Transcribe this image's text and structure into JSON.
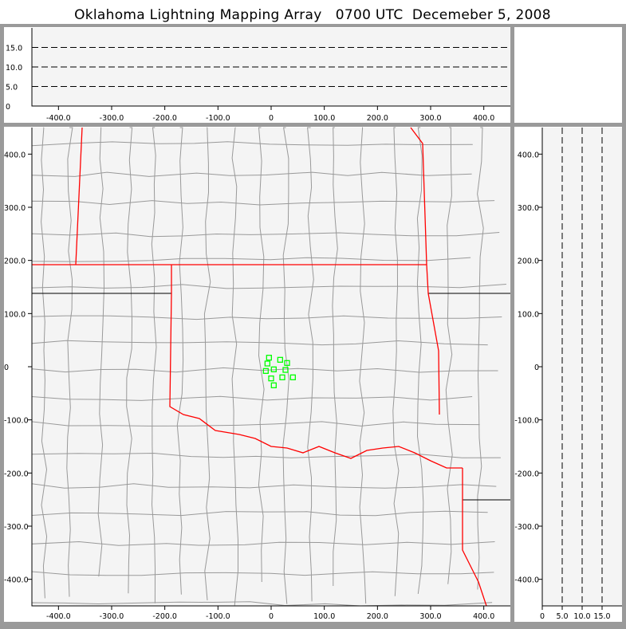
{
  "title": "Oklahoma Lightning Mapping Array   0700 UTC  Decemeber 5, 2008",
  "colors": {
    "frame": "#9a9a9a",
    "plot_bg": "#f4f4f4",
    "state_border": "#ff0000",
    "county_border": "#999999",
    "sources": "#00ff00"
  },
  "chart_data": [
    {
      "type": "scatter",
      "panel": "plan view",
      "xlim": [
        -450,
        450
      ],
      "ylim": [
        -450,
        450
      ],
      "xticks": [
        "-400.0",
        "-300.0",
        "-200.0",
        "-100.0",
        "0",
        "100.0",
        "200.0",
        "300.0",
        "400.0"
      ],
      "yticks": [
        "400.0",
        "300.0",
        "200.0",
        "100.0",
        "0",
        "-100.0",
        "-200.0",
        "-300.0",
        "-400.0"
      ],
      "marker": "open-square",
      "points": [
        [
          -4,
          17
        ],
        [
          17,
          13
        ],
        [
          30,
          7
        ],
        [
          -7,
          6
        ],
        [
          5,
          -5
        ],
        [
          -10,
          -8
        ],
        [
          27,
          -6
        ],
        [
          0,
          -22
        ],
        [
          21,
          -20
        ],
        [
          41,
          -20
        ],
        [
          5,
          -35
        ]
      ]
    },
    {
      "type": "scatter",
      "panel": "east-west vs altitude",
      "xlim": [
        -450,
        450
      ],
      "ylim": [
        0,
        20
      ],
      "xticks": [
        "-400.0",
        "-300.0",
        "-200.0",
        "-100.0",
        "0",
        "100.0",
        "200.0",
        "300.0",
        "400.0"
      ],
      "yticks": [
        "0",
        "5.0",
        "10.0",
        "15.0"
      ],
      "grid": "dashed at 5, 10, 15",
      "points": []
    },
    {
      "type": "scatter",
      "panel": "altitude vs north-south",
      "xlim": [
        0,
        20
      ],
      "ylim": [
        -450,
        450
      ],
      "xticks": [
        "0",
        "5.0",
        "10.0",
        "15.0"
      ],
      "yticks": [
        "400.0",
        "300.0",
        "200.0",
        "100.0",
        "0",
        "-100.0",
        "-200.0",
        "-300.0",
        "-400.0"
      ],
      "grid": "dashed at 5, 10, 15",
      "points": []
    }
  ]
}
